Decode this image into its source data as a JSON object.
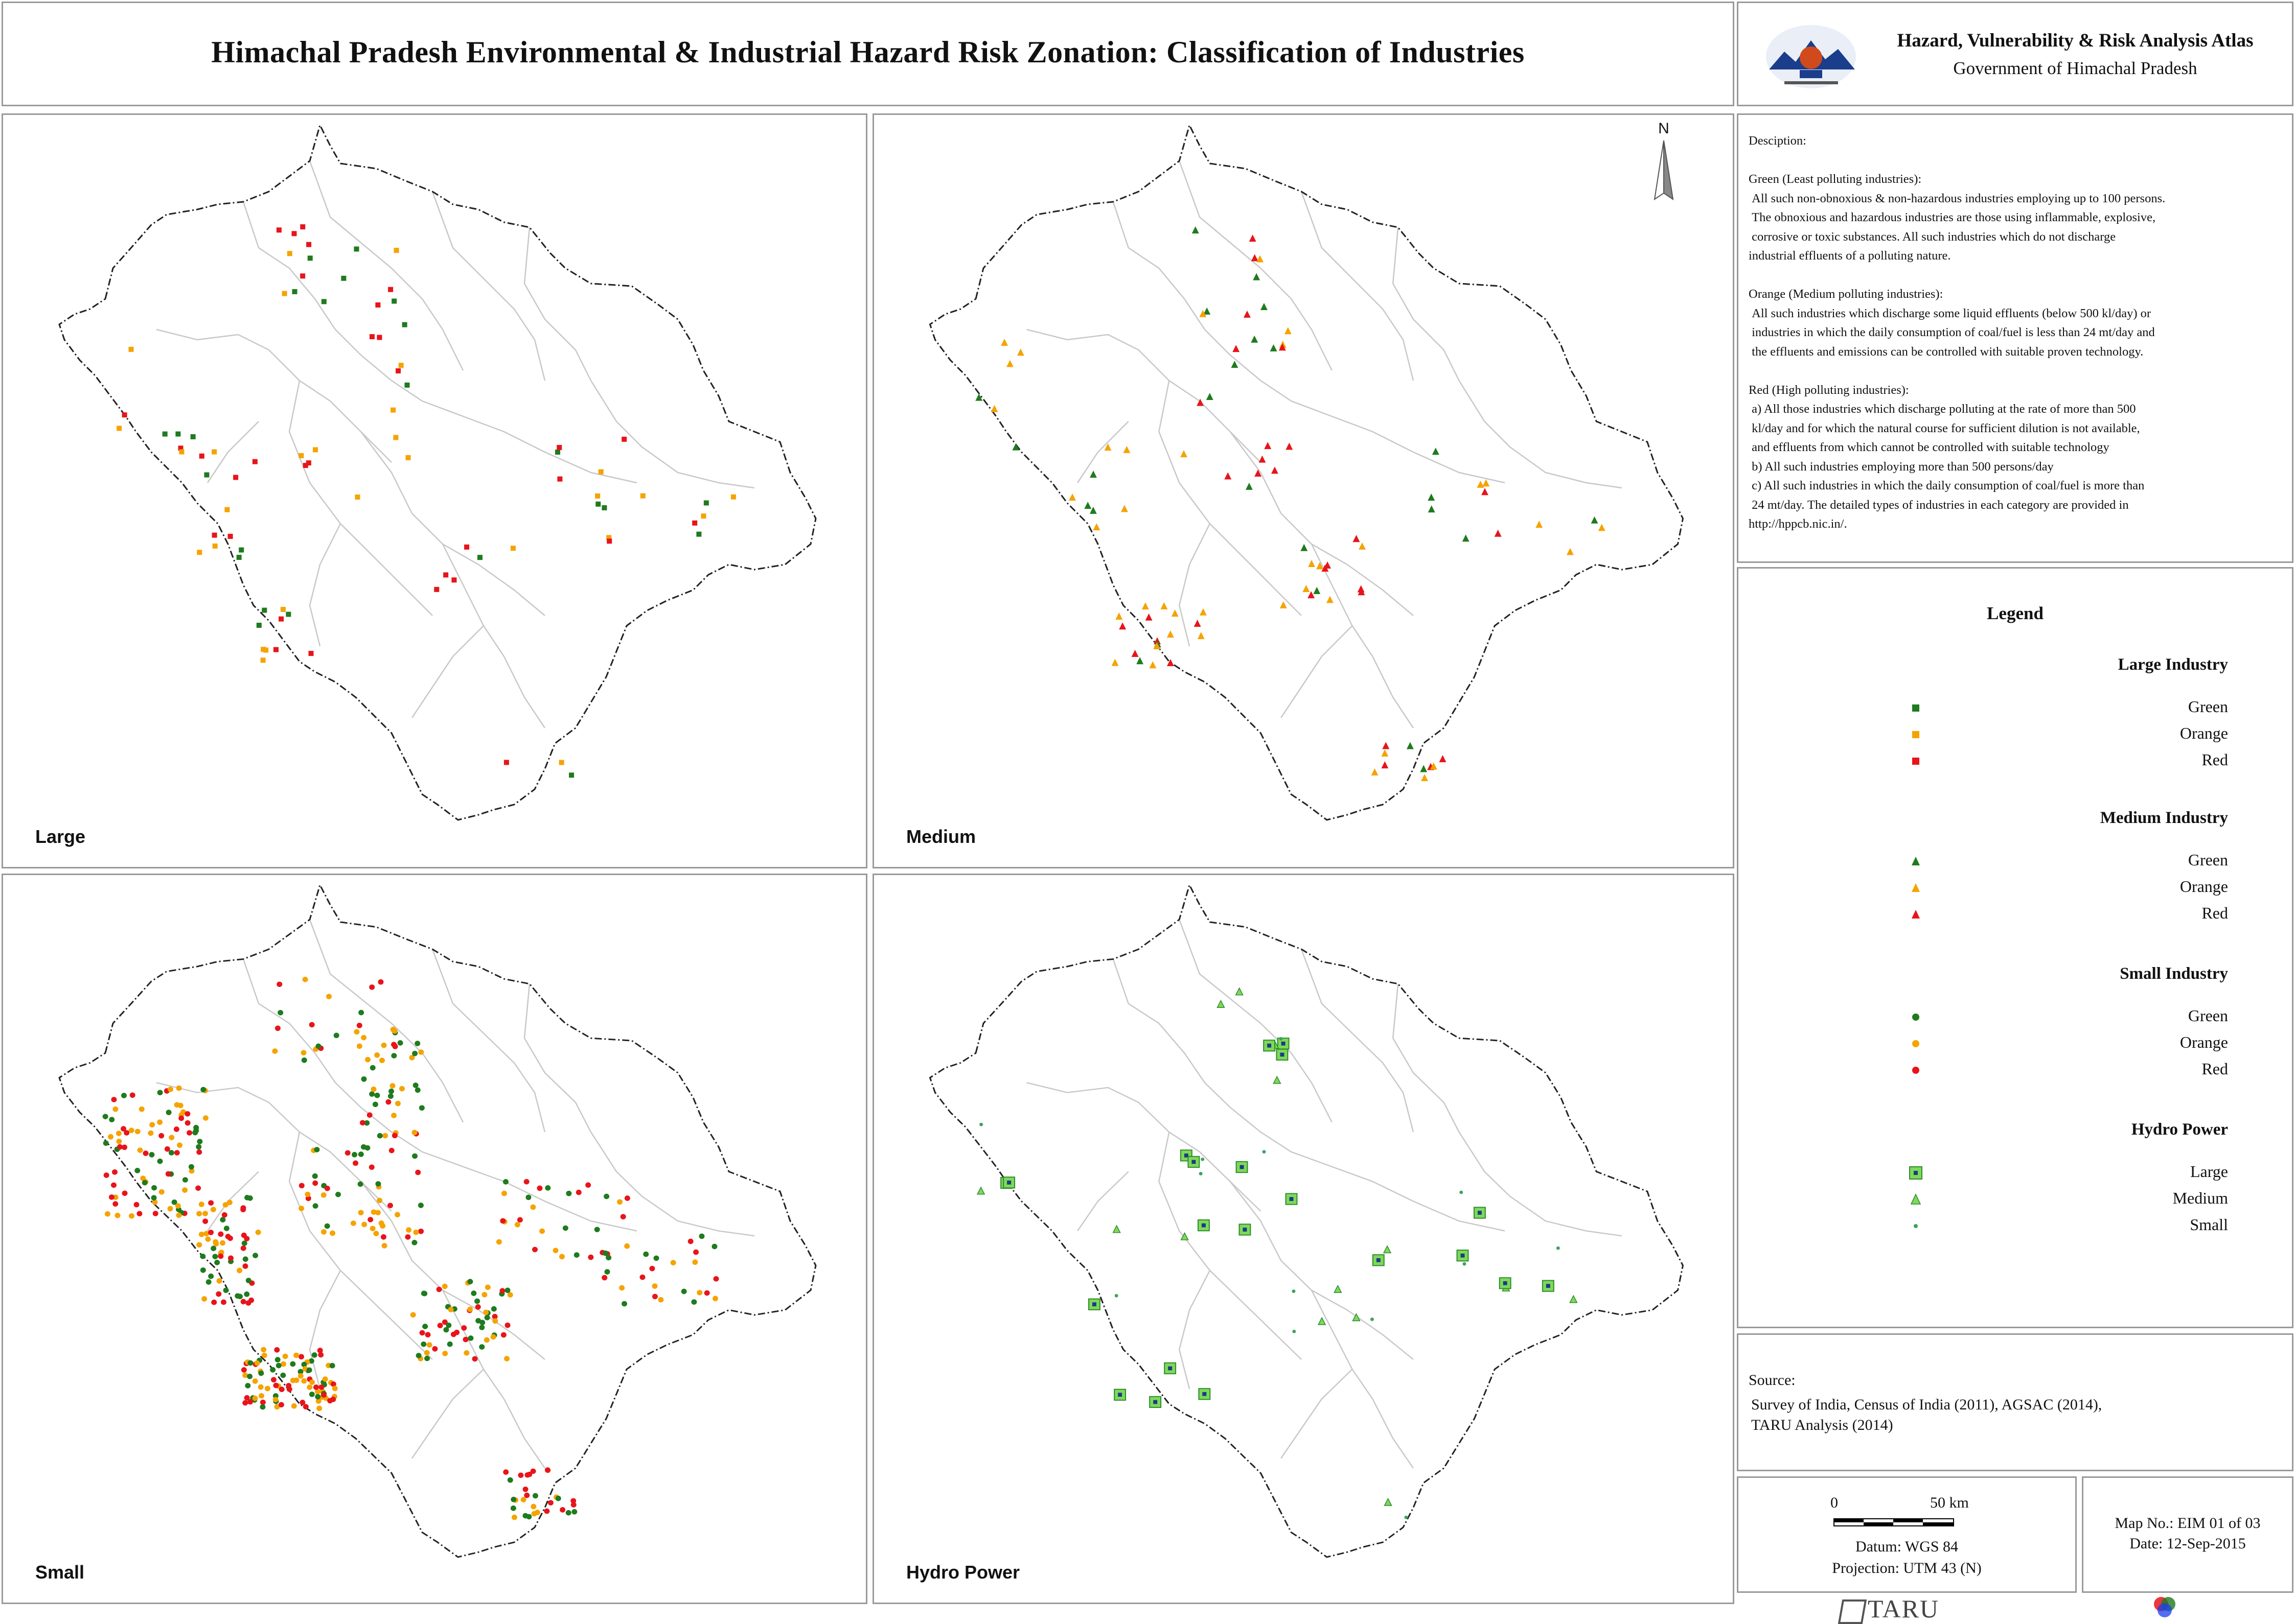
{
  "title": "Himachal Pradesh Environmental & Industrial Hazard Risk Zonation: Classification of Industries",
  "header": {
    "atlas_title": "Hazard, Vulnerability & Risk Analysis Atlas",
    "government": "Government of Himachal Pradesh"
  },
  "panels": {
    "large": "Large",
    "medium": "Medium",
    "small": "Small",
    "hydro": "Hydro Power"
  },
  "north_label": "N",
  "description": {
    "text": "Desciption:\n\nGreen (Least polluting industries):\n All such non-obnoxious & non-hazardous industries employing up to 100 persons.\n The obnoxious and hazardous industries are those using inflammable, explosive,\n corrosive or toxic substances. All such industries which do not discharge\nindustrial effluents of a polluting nature.\n\nOrange (Medium polluting industries):\n All such industries which discharge some liquid effluents (below 500 kl/day) or\n industries in which the daily consumption of coal/fuel is less than 24 mt/day and\n the effluents and emissions can be controlled with suitable proven technology.\n\nRed (High polluting industries):\n a) All those industries which discharge polluting at the rate of more than 500\n kl/day and for which the natural course for sufficient dilution is not available,\n and effluents from which cannot be controlled with suitable technology\n b) All such industries employing more than 500 persons/day\n c) All such industries in which the daily consumption of coal/fuel is more than\n 24 mt/day. The detailed types of industries in each category are provided in\nhttp://hppcb.nic.in/."
  },
  "legend": {
    "title": "Legend",
    "groups": [
      {
        "heading": "Large Industry",
        "items": [
          {
            "label": "Green",
            "symbol": "square",
            "color": "#1e7b1e"
          },
          {
            "label": "Orange",
            "symbol": "square",
            "color": "#f5a300"
          },
          {
            "label": "Red",
            "symbol": "square",
            "color": "#e8141a"
          }
        ]
      },
      {
        "heading": "Medium Industry",
        "items": [
          {
            "label": "Green",
            "symbol": "triangle",
            "color": "#1e7b1e"
          },
          {
            "label": "Orange",
            "symbol": "triangle",
            "color": "#f5a300"
          },
          {
            "label": "Red",
            "symbol": "triangle",
            "color": "#e8141a"
          }
        ]
      },
      {
        "heading": "Small Industry",
        "items": [
          {
            "label": "Green",
            "symbol": "circle",
            "color": "#1e7b1e"
          },
          {
            "label": "Orange",
            "symbol": "circle",
            "color": "#f5a300"
          },
          {
            "label": "Red",
            "symbol": "circle",
            "color": "#e8141a"
          }
        ]
      },
      {
        "heading": "Hydro Power",
        "items": [
          {
            "label": "Large",
            "symbol": "hydro-large",
            "color": "#7ed957"
          },
          {
            "label": "Medium",
            "symbol": "hydro-medium",
            "color": "#7ed957"
          },
          {
            "label": "Small",
            "symbol": "hydro-small",
            "color": "#3aa55a"
          }
        ]
      }
    ]
  },
  "source": {
    "heading": "Source:",
    "lines": [
      "Survey of India, Census of India (2011), AGSAC (2014),",
      "TARU Analysis (2014)"
    ]
  },
  "scale": {
    "start_label": "0",
    "end_label": "50 km",
    "datum": "Datum: WGS 84",
    "projection": "Projection: UTM 43 (N)"
  },
  "map_info": {
    "map_no": "Map No.: EIM 01 of 03",
    "date": "Date: 12-Sep-2015"
  },
  "footer": {
    "taru": "TARU"
  },
  "colors": {
    "green": "#1e7b1e",
    "orange": "#f5a300",
    "red": "#e8141a",
    "hydro": "#7ed957",
    "boundary": "#c8c8c8",
    "state_border": "#222222"
  }
}
